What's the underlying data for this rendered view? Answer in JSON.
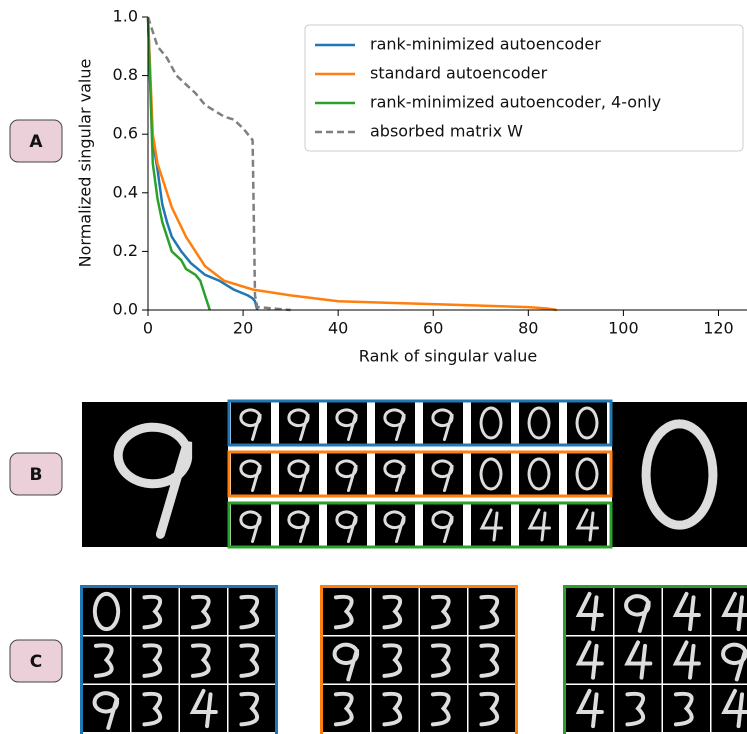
{
  "panels": [
    "A",
    "B",
    "C"
  ],
  "chart_data": {
    "type": "line",
    "xlabel": "Rank of singular value",
    "ylabel": "Normalized singular value",
    "xlim": [
      0,
      126
    ],
    "xticks": [
      0,
      20,
      40,
      60,
      80,
      100,
      120
    ],
    "ylim": [
      0,
      1
    ],
    "yticks": [
      {
        "value": 0,
        "label": "0.0"
      },
      {
        "value": 0.2,
        "label": "0.2"
      },
      {
        "value": 0.4,
        "label": "0.4"
      },
      {
        "value": 0.6,
        "label": "0.6"
      },
      {
        "value": 0.8,
        "label": "0.8"
      },
      {
        "value": 1,
        "label": "1.0"
      }
    ],
    "legend": "upper right",
    "series": [
      {
        "name": "rank-minimized autoencoder",
        "color": "#1f77b4",
        "dash": false,
        "x": [
          0,
          1,
          1.5,
          2,
          3,
          4,
          5,
          7,
          9,
          12,
          15,
          18,
          21,
          22,
          22.5,
          23
        ],
        "values": [
          1,
          0.55,
          0.53,
          0.48,
          0.36,
          0.3,
          0.25,
          0.2,
          0.16,
          0.12,
          0.1,
          0.07,
          0.05,
          0.04,
          0.03,
          0.0
        ]
      },
      {
        "name": "standard autoencoder",
        "color": "#ff7f0e",
        "dash": false,
        "x": [
          0,
          1,
          2,
          3,
          5,
          8,
          12,
          16,
          22,
          30,
          40,
          50,
          60,
          70,
          80,
          84,
          86
        ],
        "values": [
          1,
          0.6,
          0.5,
          0.45,
          0.35,
          0.25,
          0.15,
          0.1,
          0.07,
          0.05,
          0.03,
          0.025,
          0.02,
          0.015,
          0.01,
          0.005,
          0.0
        ]
      },
      {
        "name": "rank-minimized autoencoder, 4-only",
        "color": "#2ca02c",
        "dash": false,
        "x": [
          0,
          1,
          2,
          3,
          5,
          7,
          8,
          10,
          11,
          12,
          13
        ],
        "values": [
          1,
          0.5,
          0.38,
          0.3,
          0.2,
          0.17,
          0.14,
          0.12,
          0.1,
          0.05,
          0.0
        ]
      },
      {
        "name": "absorbed matrix W",
        "color": "#7f7f7f",
        "dash": true,
        "x": [
          0,
          2,
          4,
          6,
          8,
          10,
          12,
          14,
          16,
          18,
          20,
          22,
          22.5,
          23,
          30
        ],
        "values": [
          1,
          0.9,
          0.86,
          0.8,
          0.77,
          0.74,
          0.7,
          0.68,
          0.66,
          0.65,
          0.62,
          0.58,
          0.05,
          0.01,
          0.0
        ]
      }
    ]
  }
}
